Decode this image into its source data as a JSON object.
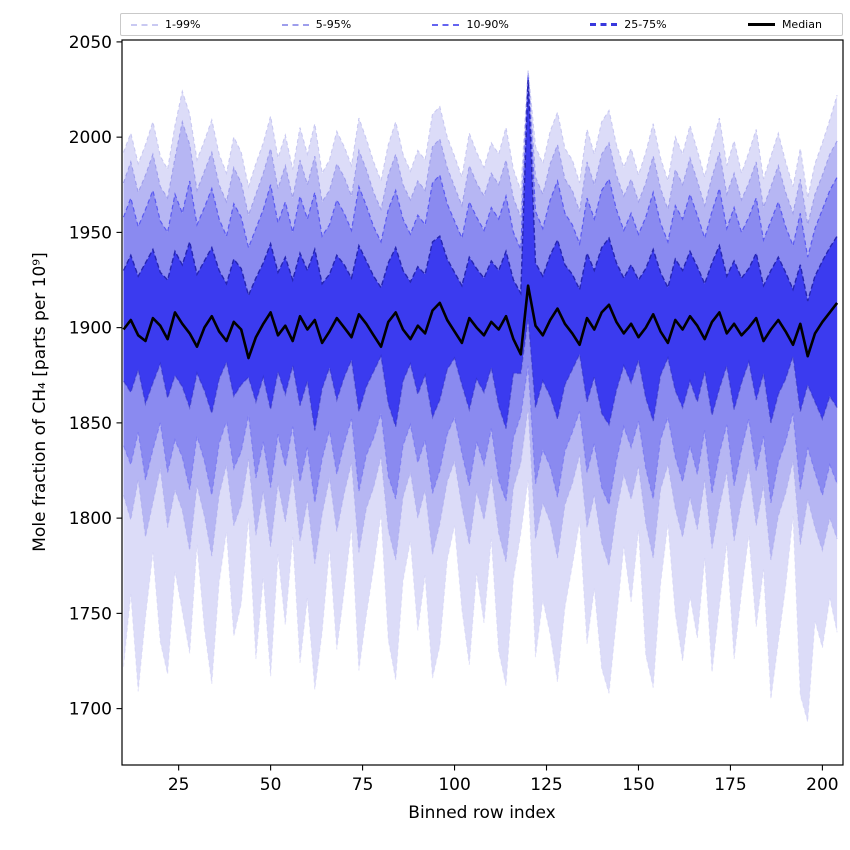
{
  "legend": {
    "entries": [
      {
        "label": "1-99%",
        "color": "#c9c9f2",
        "style": "dashed",
        "weight": 2
      },
      {
        "label": "5-95%",
        "color": "#9e9eec",
        "style": "dashed",
        "weight": 2
      },
      {
        "label": "10-90%",
        "color": "#6464f0",
        "style": "dashed",
        "weight": 2
      },
      {
        "label": "25-75%",
        "color": "#3838dd",
        "style": "dashed",
        "weight": 3
      },
      {
        "label": "Median",
        "color": "#000000",
        "style": "solid",
        "weight": 3
      }
    ]
  },
  "chart_data": {
    "type": "area",
    "subtype": "percentile-fan-chart",
    "title": "",
    "xlabel": "Binned row index",
    "ylabel": "Mole fraction of CH₄ [parts per 10⁹]",
    "xlim": [
      9.6,
      205.6
    ],
    "ylim": [
      1670.4,
      2051.0
    ],
    "xticks": [
      25,
      50,
      75,
      100,
      125,
      150,
      175,
      200
    ],
    "yticks": [
      1700,
      1750,
      1800,
      1850,
      1900,
      1950,
      2000,
      2050
    ],
    "grid": false,
    "legend_position": "top",
    "frame_color": "#000000",
    "x": [
      10,
      12,
      14,
      16,
      18,
      20,
      22,
      24,
      26,
      28,
      30,
      32,
      34,
      36,
      38,
      40,
      42,
      44,
      46,
      48,
      50,
      52,
      54,
      56,
      58,
      60,
      62,
      64,
      66,
      68,
      70,
      72,
      74,
      76,
      78,
      80,
      82,
      84,
      86,
      88,
      90,
      92,
      94,
      96,
      98,
      100,
      102,
      104,
      106,
      108,
      110,
      112,
      114,
      116,
      118,
      120,
      122,
      124,
      126,
      128,
      130,
      132,
      134,
      136,
      138,
      140,
      142,
      144,
      146,
      148,
      150,
      152,
      154,
      156,
      158,
      160,
      162,
      164,
      166,
      168,
      170,
      172,
      174,
      176,
      178,
      180,
      182,
      184,
      186,
      188,
      190,
      192,
      194,
      196,
      198,
      200,
      202,
      204
    ],
    "percentiles": {
      "p1": [
        1722,
        1760,
        1709,
        1748,
        1782,
        1735,
        1718,
        1772,
        1751,
        1729,
        1786,
        1742,
        1713,
        1766,
        1793,
        1738,
        1755,
        1800,
        1726,
        1769,
        1717,
        1781,
        1744,
        1790,
        1724,
        1758,
        1710,
        1740,
        1784,
        1731,
        1762,
        1795,
        1720,
        1749,
        1774,
        1802,
        1736,
        1715,
        1767,
        1788,
        1741,
        1770,
        1716,
        1733,
        1778,
        1796,
        1752,
        1723,
        1771,
        1745,
        1789,
        1730,
        1712,
        1768,
        1792,
        1820,
        1727,
        1757,
        1739,
        1714,
        1753,
        1775,
        1798,
        1734,
        1763,
        1721,
        1708,
        1747,
        1785,
        1756,
        1794,
        1728,
        1711,
        1765,
        1797,
        1750,
        1725,
        1759,
        1737,
        1779,
        1719,
        1754,
        1787,
        1726,
        1761,
        1791,
        1743,
        1773,
        1705,
        1735,
        1764,
        1801,
        1707,
        1693,
        1746,
        1732,
        1758,
        1740
      ],
      "p5": [
        1812,
        1799,
        1820,
        1790,
        1808,
        1826,
        1795,
        1815,
        1804,
        1783,
        1817,
        1801,
        1780,
        1812,
        1828,
        1796,
        1807,
        1831,
        1791,
        1814,
        1785,
        1818,
        1798,
        1823,
        1788,
        1809,
        1776,
        1802,
        1821,
        1793,
        1813,
        1829,
        1782,
        1805,
        1816,
        1832,
        1794,
        1778,
        1811,
        1824,
        1800,
        1815,
        1781,
        1797,
        1819,
        1830,
        1806,
        1786,
        1814,
        1799,
        1822,
        1792,
        1777,
        1816,
        1829,
        1858,
        1789,
        1808,
        1798,
        1779,
        1807,
        1818,
        1833,
        1795,
        1812,
        1787,
        1775,
        1803,
        1823,
        1810,
        1827,
        1797,
        1779,
        1815,
        1828,
        1805,
        1790,
        1811,
        1794,
        1820,
        1784,
        1806,
        1824,
        1788,
        1809,
        1826,
        1796,
        1817,
        1778,
        1801,
        1813,
        1830,
        1786,
        1810,
        1795,
        1783,
        1800,
        1789
      ],
      "p10": [
        1838,
        1828,
        1845,
        1820,
        1836,
        1850,
        1824,
        1841,
        1832,
        1815,
        1843,
        1830,
        1812,
        1839,
        1851,
        1826,
        1835,
        1854,
        1821,
        1840,
        1816,
        1844,
        1827,
        1848,
        1819,
        1837,
        1808,
        1831,
        1846,
        1823,
        1839,
        1852,
        1814,
        1833,
        1842,
        1855,
        1822,
        1810,
        1838,
        1849,
        1829,
        1841,
        1813,
        1825,
        1844,
        1853,
        1834,
        1817,
        1840,
        1828,
        1847,
        1820,
        1809,
        1842,
        1854,
        1880,
        1818,
        1836,
        1827,
        1811,
        1835,
        1845,
        1856,
        1824,
        1839,
        1816,
        1807,
        1830,
        1848,
        1837,
        1851,
        1826,
        1810,
        1841,
        1853,
        1832,
        1819,
        1838,
        1823,
        1846,
        1813,
        1834,
        1849,
        1817,
        1836,
        1852,
        1825,
        1843,
        1808,
        1829,
        1840,
        1855,
        1815,
        1837,
        1824,
        1812,
        1828,
        1818
      ],
      "p25": [
        1872,
        1866,
        1878,
        1860,
        1871,
        1881,
        1863,
        1875,
        1869,
        1858,
        1876,
        1867,
        1855,
        1873,
        1882,
        1864,
        1870,
        1874,
        1861,
        1874,
        1857,
        1877,
        1865,
        1880,
        1859,
        1872,
        1846,
        1868,
        1879,
        1862,
        1874,
        1883,
        1856,
        1869,
        1877,
        1885,
        1860,
        1848,
        1872,
        1881,
        1865,
        1875,
        1853,
        1862,
        1878,
        1884,
        1870,
        1857,
        1873,
        1866,
        1879,
        1859,
        1847,
        1876,
        1876,
        1905,
        1858,
        1872,
        1864,
        1852,
        1870,
        1878,
        1886,
        1861,
        1874,
        1855,
        1849,
        1867,
        1880,
        1871,
        1883,
        1863,
        1851,
        1875,
        1884,
        1867,
        1858,
        1872,
        1861,
        1877,
        1854,
        1868,
        1880,
        1857,
        1871,
        1882,
        1862,
        1876,
        1850,
        1865,
        1873,
        1885,
        1856,
        1870,
        1861,
        1852,
        1864,
        1858
      ],
      "p75": [
        1930,
        1938,
        1927,
        1934,
        1941,
        1929,
        1925,
        1940,
        1933,
        1945,
        1928,
        1935,
        1942,
        1930,
        1923,
        1936,
        1931,
        1917,
        1926,
        1934,
        1944,
        1929,
        1937,
        1925,
        1939,
        1930,
        1941,
        1923,
        1928,
        1938,
        1933,
        1926,
        1943,
        1935,
        1927,
        1921,
        1934,
        1942,
        1930,
        1924,
        1932,
        1928,
        1945,
        1948,
        1936,
        1929,
        1922,
        1937,
        1931,
        1926,
        1935,
        1930,
        1940,
        1925,
        1918,
        2030,
        1934,
        1927,
        1938,
        1946,
        1933,
        1928,
        1920,
        1939,
        1930,
        1942,
        1947,
        1934,
        1926,
        1933,
        1925,
        1931,
        1941,
        1929,
        1921,
        1936,
        1930,
        1940,
        1932,
        1923,
        1934,
        1943,
        1927,
        1935,
        1926,
        1931,
        1939,
        1922,
        1930,
        1937,
        1929,
        1920,
        1933,
        1914,
        1927,
        1935,
        1942,
        1948
      ],
      "p90": [
        1958,
        1968,
        1953,
        1962,
        1972,
        1956,
        1950,
        1970,
        1960,
        1977,
        1954,
        1963,
        1973,
        1957,
        1948,
        1965,
        1958,
        1942,
        1952,
        1962,
        1975,
        1955,
        1966,
        1950,
        1969,
        1957,
        1971,
        1948,
        1954,
        1967,
        1960,
        1951,
        1974,
        1964,
        1953,
        1945,
        1962,
        1972,
        1957,
        1949,
        1959,
        1954,
        1976,
        1980,
        1965,
        1956,
        1947,
        1966,
        1958,
        1951,
        1963,
        1957,
        1969,
        1950,
        1941,
        2032,
        1961,
        1952,
        1967,
        1977,
        1960,
        1954,
        1944,
        1968,
        1957,
        1972,
        1978,
        1962,
        1951,
        1960,
        1949,
        1958,
        1971,
        1955,
        1945,
        1964,
        1957,
        1970,
        1959,
        1947,
        1961,
        1973,
        1952,
        1963,
        1950,
        1958,
        1968,
        1946,
        1956,
        1966,
        1953,
        1943,
        1960,
        1937,
        1952,
        1962,
        1972,
        1979
      ],
      "p95": [
        1976,
        1987,
        1971,
        1980,
        1991,
        1974,
        1968,
        1989,
        2008,
        1996,
        1972,
        1982,
        1992,
        1975,
        1966,
        1984,
        1976,
        1959,
        1970,
        1981,
        1994,
        1973,
        1985,
        1968,
        1988,
        1975,
        1990,
        1966,
        1972,
        1986,
        1979,
        1969,
        1993,
        1983,
        1971,
        1962,
        1980,
        1991,
        1975,
        1967,
        1977,
        1972,
        1995,
        1999,
        1984,
        1974,
        1964,
        1985,
        1976,
        1969,
        1981,
        1975,
        1988,
        1968,
        1958,
        2034,
        1979,
        1970,
        1986,
        1996,
        1978,
        1972,
        1961,
        1987,
        1975,
        1991,
        1997,
        1980,
        1969,
        1978,
        1966,
        1976,
        1990,
        1973,
        1962,
        1983,
        1975,
        1989,
        1977,
        1964,
        1979,
        1992,
        1970,
        1981,
        1967,
        1976,
        1987,
        1963,
        1974,
        1985,
        1971,
        1960,
        1978,
        1954,
        1970,
        1980,
        1991,
        1998
      ],
      "p99": [
        1992,
        2002,
        1986,
        1996,
        2008,
        1990,
        1983,
        2006,
        2024,
        2012,
        1988,
        1998,
        2009,
        1991,
        1981,
        2000,
        1992,
        1974,
        1986,
        1997,
        2011,
        1989,
        2001,
        1983,
        2005,
        1991,
        2007,
        1981,
        1988,
        2003,
        1995,
        1985,
        2010,
        1999,
        1987,
        1977,
        1996,
        2008,
        1991,
        1982,
        1993,
        1988,
        2012,
        2016,
        2000,
        1990,
        1979,
        2002,
        1992,
        1984,
        1997,
        1991,
        2005,
        1983,
        1972,
        2035,
        1995,
        1986,
        2003,
        2013,
        1994,
        1988,
        1976,
        2004,
        1991,
        2008,
        2014,
        1996,
        1984,
        1994,
        1980,
        1992,
        2007,
        1989,
        1977,
        2000,
        1991,
        2006,
        1993,
        1979,
        1996,
        2010,
        1985,
        1998,
        1981,
        1992,
        2004,
        1978,
        1990,
        2002,
        1987,
        1974,
        1994,
        1968,
        1986,
        1997,
        2009,
        2022
      ]
    },
    "bands": [
      {
        "label": "1-99%",
        "lower": "p1",
        "upper": "p99",
        "fill": "#dcdcf8",
        "edge": "#c9c9f2",
        "edge_width": 1.1,
        "dash": "4 3"
      },
      {
        "label": "5-95%",
        "lower": "p5",
        "upper": "p95",
        "fill": "#b6b6f3",
        "edge": "#9e9eec",
        "edge_width": 1.1,
        "dash": "4 3"
      },
      {
        "label": "10-90%",
        "lower": "p10",
        "upper": "p90",
        "fill": "#8a8af0",
        "edge": "#5a5af0",
        "edge_width": 1.2,
        "dash": "4.5 3"
      },
      {
        "label": "25-75%",
        "lower": "p25",
        "upper": "p75",
        "fill": "#3b3bef",
        "edge": "#2525b2",
        "edge_width": 1.4,
        "dash": "5 2.6"
      }
    ],
    "median": {
      "label": "Median",
      "color": "#000000",
      "width": 2.6,
      "values": [
        1899,
        1904,
        1896,
        1893,
        1905,
        1901,
        1894,
        1908,
        1902,
        1897,
        1890,
        1900,
        1906,
        1898,
        1893,
        1903,
        1899,
        1884,
        1895,
        1902,
        1908,
        1896,
        1901,
        1893,
        1906,
        1899,
        1904,
        1892,
        1898,
        1905,
        1900,
        1895,
        1907,
        1902,
        1896,
        1890,
        1903,
        1908,
        1899,
        1894,
        1901,
        1897,
        1909,
        1913,
        1904,
        1898,
        1892,
        1905,
        1900,
        1896,
        1903,
        1899,
        1906,
        1894,
        1886,
        1922,
        1901,
        1896,
        1904,
        1910,
        1902,
        1897,
        1891,
        1905,
        1899,
        1908,
        1912,
        1903,
        1897,
        1902,
        1895,
        1900,
        1907,
        1898,
        1892,
        1904,
        1899,
        1906,
        1901,
        1894,
        1903,
        1908,
        1897,
        1902,
        1896,
        1900,
        1905,
        1893,
        1899,
        1904,
        1898,
        1891,
        1902,
        1885,
        1897,
        1903,
        1908,
        1913
      ]
    }
  }
}
